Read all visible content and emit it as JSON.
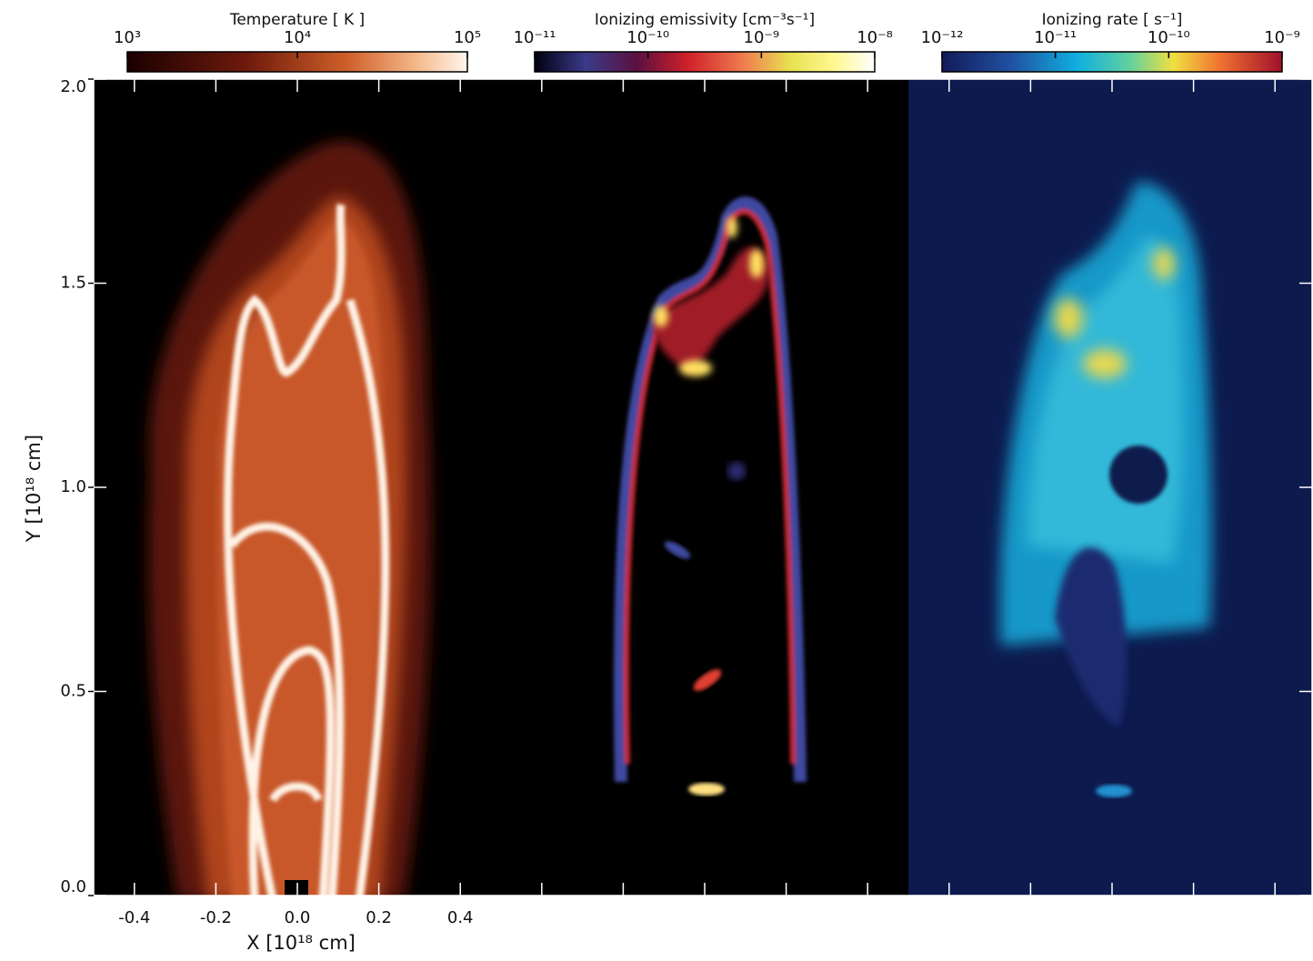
{
  "chart_data": [
    {
      "type": "image",
      "colorbar_title": "Temperature [ K ]",
      "colorbar_log": true,
      "colorbar_lim": [
        1000,
        100000
      ],
      "colorbar_ticks": [
        {
          "value": 1000,
          "label": "10³"
        },
        {
          "value": 10000,
          "label": "10⁴"
        },
        {
          "value": 100000,
          "label": "10⁵"
        }
      ],
      "xlabel": "X [10¹⁸ cm]",
      "ylabel": "Y [10¹⁸ cm]",
      "xlim": [
        -0.5,
        0.5
      ],
      "ylim": [
        0,
        2
      ],
      "xticks": [
        -0.4,
        -0.2,
        {
          "value": 0,
          "label": "0.0"
        },
        0.2,
        0.4
      ],
      "yticks": [
        {
          "value": 0,
          "label": "0.0"
        },
        0.5,
        {
          "value": 1,
          "label": "1.0"
        },
        1.5,
        {
          "value": 2,
          "label": "2.0"
        }
      ]
    },
    {
      "type": "image",
      "colorbar_title": "Ionizing emissivity [cm⁻³s⁻¹]",
      "colorbar_log": true,
      "colorbar_lim": [
        1e-11,
        1e-08
      ],
      "colorbar_ticks": [
        {
          "value": 1e-11,
          "label": "10⁻¹¹"
        },
        {
          "value": 1e-10,
          "label": "10⁻¹⁰"
        },
        {
          "value": 1e-09,
          "label": "10⁻⁹"
        },
        {
          "value": 1e-08,
          "label": "10⁻⁸"
        }
      ]
    },
    {
      "type": "image",
      "colorbar_title": "Ionizing rate [ s⁻¹]",
      "colorbar_log": true,
      "colorbar_lim": [
        1e-12,
        1e-09
      ],
      "colorbar_ticks": [
        {
          "value": 1e-12,
          "label": "10⁻¹²"
        },
        {
          "value": 1e-11,
          "label": "10⁻¹¹"
        },
        {
          "value": 1e-10,
          "label": "10⁻¹⁰"
        },
        {
          "value": 1e-09,
          "label": "10⁻⁹"
        }
      ]
    }
  ]
}
